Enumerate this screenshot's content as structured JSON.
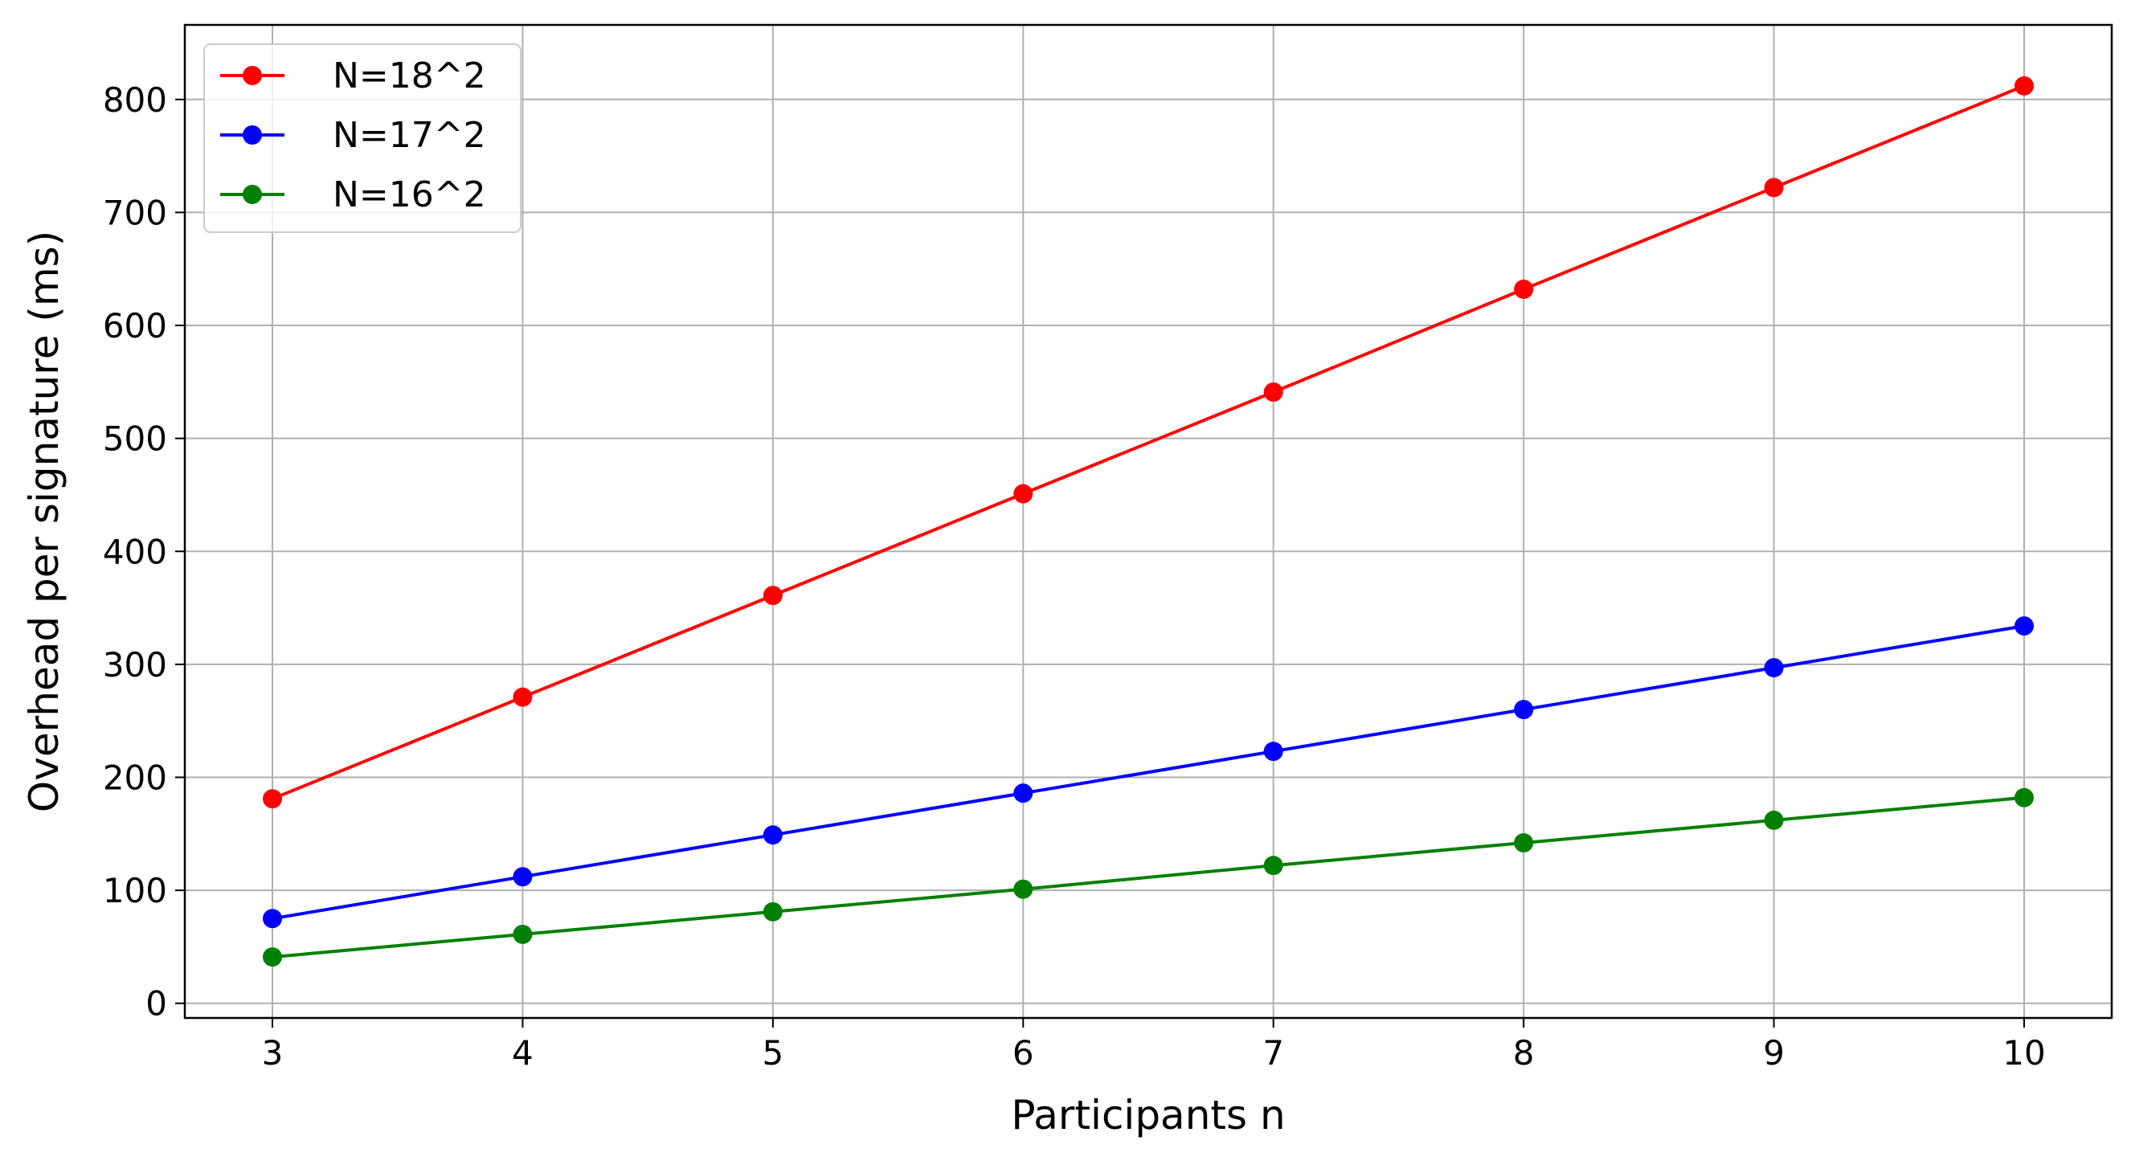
{
  "chart_data": {
    "type": "line",
    "title": "",
    "xlabel": "Participants n",
    "ylabel": "Overhead per signature (ms)",
    "x": [
      3,
      4,
      5,
      6,
      7,
      8,
      9,
      10
    ],
    "xlim": [
      2.65,
      10.35
    ],
    "ylim": [
      -13,
      866
    ],
    "xticks": [
      3,
      4,
      5,
      6,
      7,
      8,
      9,
      10
    ],
    "yticks": [
      0,
      100,
      200,
      300,
      400,
      500,
      600,
      700,
      800
    ],
    "grid": true,
    "legend_position": "upper-left",
    "series": [
      {
        "name": "N=18^2",
        "color": "#ff0000",
        "marker": "circle",
        "values": [
          181,
          271,
          361,
          451,
          541,
          632,
          722,
          812
        ]
      },
      {
        "name": "N=17^2",
        "color": "#0000ff",
        "marker": "circle",
        "values": [
          75,
          112,
          149,
          186,
          223,
          260,
          297,
          334
        ]
      },
      {
        "name": "N=16^2",
        "color": "#008000",
        "marker": "circle",
        "values": [
          41,
          61,
          81,
          101,
          122,
          142,
          162,
          182
        ]
      }
    ]
  }
}
